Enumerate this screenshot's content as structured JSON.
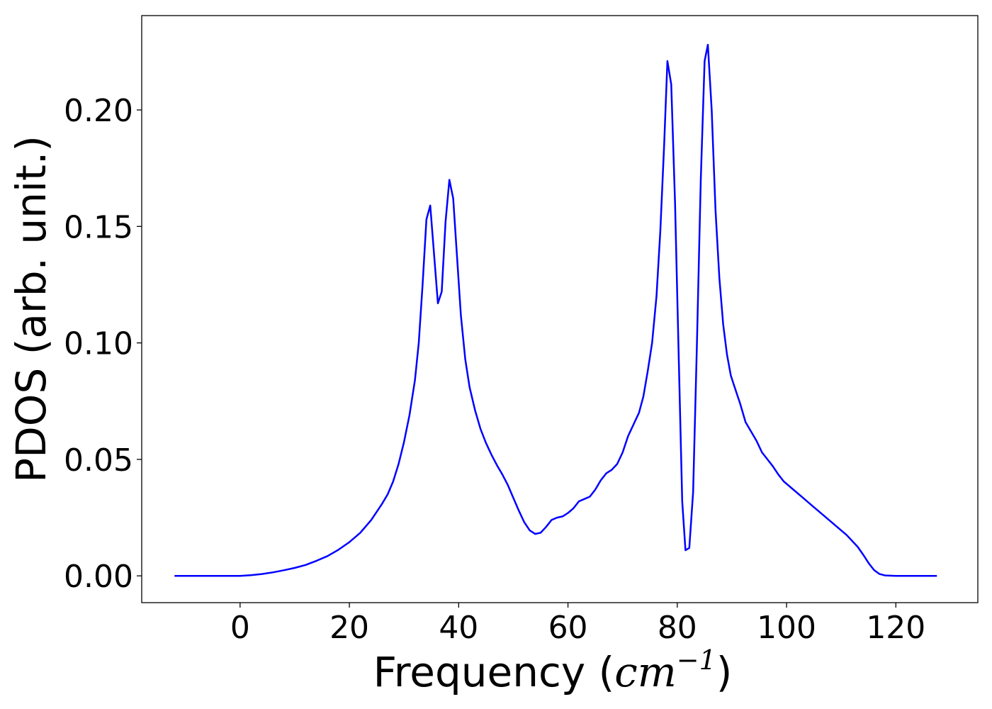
{
  "chart_data": {
    "type": "line",
    "title": "",
    "xlabel": "Frequency ",
    "xlabel_math": {
      "base": "cm",
      "exponent": "−1"
    },
    "ylabel": "PDOS (arb. unit.)",
    "xlim": [
      -18,
      135
    ],
    "ylim": [
      -0.0115,
      0.2405
    ],
    "xticks": [
      0,
      20,
      40,
      60,
      80,
      100,
      120
    ],
    "xtick_labels": [
      "0",
      "20",
      "40",
      "60",
      "80",
      "100",
      "120"
    ],
    "yticks": [
      0.0,
      0.05,
      0.1,
      0.15,
      0.2
    ],
    "ytick_labels": [
      "0.00",
      "0.05",
      "0.10",
      "0.15",
      "0.20"
    ],
    "grid": false,
    "series_color": "#0000ff",
    "series": [
      {
        "x": [
          -12,
          -5,
          0,
          2,
          4,
          6,
          8,
          10,
          12,
          14,
          16,
          18,
          20,
          22,
          24,
          26,
          27,
          28,
          29,
          30,
          31,
          32,
          32.7,
          33.4,
          34.1,
          34.8,
          35.5,
          36.2,
          36.9,
          37.6,
          38.3,
          39,
          39.7,
          40.4,
          41.2,
          42,
          43,
          44,
          45,
          46,
          47,
          48,
          49,
          50,
          51,
          52,
          53,
          54,
          55,
          56,
          57,
          58,
          59,
          60,
          61,
          62,
          63,
          64,
          65,
          66,
          67,
          68,
          69,
          70,
          71,
          72,
          73,
          73.8,
          74.6,
          75.4,
          76.2,
          76.9,
          77.6,
          78.2,
          78.9,
          79.6,
          80.2,
          80.9,
          81.5,
          82.2,
          82.9,
          83.6,
          84.3,
          85,
          85.6,
          86.3,
          87,
          87.7,
          88.4,
          89.1,
          89.8,
          90.5,
          91.5,
          92.5,
          93.5,
          94.5,
          95.5,
          96.5,
          97.5,
          98.5,
          99.5,
          101,
          103,
          105,
          107,
          109,
          111,
          113,
          114,
          115,
          116,
          117,
          118,
          120,
          124,
          127.5
        ],
        "y": [
          0.0,
          0.0,
          0.0,
          0.0003,
          0.0008,
          0.0015,
          0.0024,
          0.0034,
          0.0047,
          0.0065,
          0.0085,
          0.0112,
          0.0145,
          0.0185,
          0.024,
          0.031,
          0.035,
          0.0405,
          0.048,
          0.0575,
          0.069,
          0.084,
          0.1,
          0.125,
          0.153,
          0.159,
          0.138,
          0.117,
          0.122,
          0.152,
          0.17,
          0.162,
          0.137,
          0.112,
          0.093,
          0.081,
          0.071,
          0.063,
          0.057,
          0.052,
          0.0475,
          0.0435,
          0.039,
          0.0335,
          0.028,
          0.023,
          0.0195,
          0.018,
          0.0185,
          0.021,
          0.024,
          0.025,
          0.0255,
          0.027,
          0.029,
          0.032,
          0.033,
          0.034,
          0.037,
          0.041,
          0.044,
          0.0455,
          0.048,
          0.053,
          0.06,
          0.065,
          0.07,
          0.077,
          0.088,
          0.1,
          0.12,
          0.148,
          0.185,
          0.221,
          0.211,
          0.16,
          0.1,
          0.032,
          0.011,
          0.012,
          0.036,
          0.1,
          0.17,
          0.221,
          0.228,
          0.2,
          0.157,
          0.128,
          0.108,
          0.095,
          0.086,
          0.081,
          0.074,
          0.066,
          0.062,
          0.058,
          0.053,
          0.05,
          0.047,
          0.0435,
          0.0405,
          0.0375,
          0.0335,
          0.0295,
          0.0255,
          0.0215,
          0.0175,
          0.0125,
          0.0092,
          0.0055,
          0.0025,
          0.0008,
          0.0002,
          0.0,
          0.0,
          0.0
        ]
      }
    ]
  }
}
